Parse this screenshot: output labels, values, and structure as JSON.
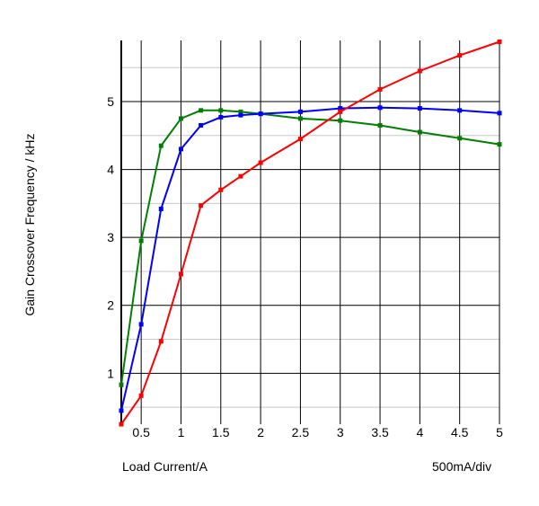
{
  "chart_data": {
    "type": "line",
    "xlabel": "Load Current/A",
    "ylabel": "Gain Crossover Frequency / kHz",
    "x_scale_note": "500mA/div",
    "xlim": [
      0.25,
      5.0
    ],
    "ylim": [
      0.25,
      5.9
    ],
    "x_ticks": [
      "0.5",
      "1",
      "1.5",
      "2",
      "2.5",
      "3",
      "3.5",
      "4",
      "4.5",
      "5"
    ],
    "y_ticks": [
      "1",
      "2",
      "3",
      "4",
      "5"
    ],
    "grid": true,
    "series": [
      {
        "color": "#008000",
        "points": [
          [
            0.25,
            0.83
          ],
          [
            0.5,
            2.95
          ],
          [
            0.75,
            4.35
          ],
          [
            1.0,
            4.75
          ],
          [
            1.25,
            4.87
          ],
          [
            1.5,
            4.87
          ],
          [
            1.75,
            4.85
          ],
          [
            2.0,
            4.82
          ],
          [
            2.5,
            4.75
          ],
          [
            3.0,
            4.72
          ],
          [
            3.5,
            4.65
          ],
          [
            4.0,
            4.55
          ],
          [
            4.5,
            4.46
          ],
          [
            5.0,
            4.37
          ]
        ]
      },
      {
        "color": "#0000ff",
        "points": [
          [
            0.25,
            0.45
          ],
          [
            0.5,
            1.72
          ],
          [
            0.75,
            3.42
          ],
          [
            1.0,
            4.3
          ],
          [
            1.25,
            4.65
          ],
          [
            1.5,
            4.77
          ],
          [
            1.75,
            4.8
          ],
          [
            2.0,
            4.82
          ],
          [
            2.5,
            4.85
          ],
          [
            3.0,
            4.9
          ],
          [
            3.5,
            4.91
          ],
          [
            4.0,
            4.9
          ],
          [
            4.5,
            4.87
          ],
          [
            5.0,
            4.83
          ]
        ]
      },
      {
        "color": "#ff0000",
        "points": [
          [
            0.25,
            0.25
          ],
          [
            0.5,
            0.67
          ],
          [
            0.75,
            1.47
          ],
          [
            1.0,
            2.46
          ],
          [
            1.25,
            3.47
          ],
          [
            1.5,
            3.7
          ],
          [
            1.75,
            3.9
          ],
          [
            2.0,
            4.1
          ],
          [
            2.5,
            4.45
          ],
          [
            3.0,
            4.85
          ],
          [
            3.5,
            5.18
          ],
          [
            4.0,
            5.45
          ],
          [
            4.5,
            5.68
          ],
          [
            5.0,
            5.88
          ]
        ]
      }
    ]
  }
}
